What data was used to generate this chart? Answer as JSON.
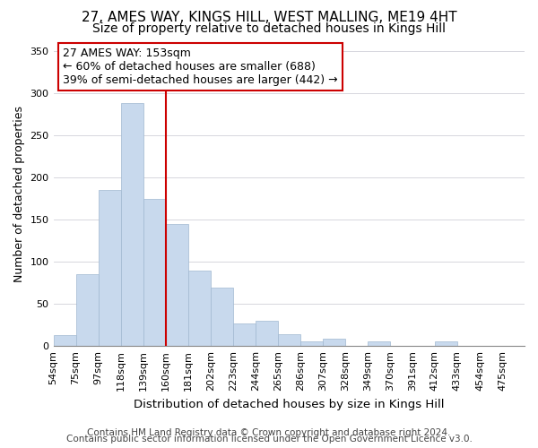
{
  "title": "27, AMES WAY, KINGS HILL, WEST MALLING, ME19 4HT",
  "subtitle": "Size of property relative to detached houses in Kings Hill",
  "xlabel": "Distribution of detached houses by size in Kings Hill",
  "ylabel": "Number of detached properties",
  "footer_line1": "Contains HM Land Registry data © Crown copyright and database right 2024.",
  "footer_line2": "Contains public sector information licensed under the Open Government Licence v3.0.",
  "bin_labels": [
    "54sqm",
    "75sqm",
    "97sqm",
    "118sqm",
    "139sqm",
    "160sqm",
    "181sqm",
    "202sqm",
    "223sqm",
    "244sqm",
    "265sqm",
    "286sqm",
    "307sqm",
    "328sqm",
    "349sqm",
    "370sqm",
    "391sqm",
    "412sqm",
    "433sqm",
    "454sqm",
    "475sqm"
  ],
  "bar_values": [
    13,
    85,
    185,
    288,
    175,
    145,
    90,
    69,
    27,
    30,
    14,
    5,
    9,
    0,
    5,
    0,
    0,
    5,
    0,
    0,
    0
  ],
  "bar_color": "#c8d9ed",
  "bar_edge_color": "#a0b8d0",
  "vline_position": 5,
  "vline_color": "#cc0000",
  "annotation_text": "27 AMES WAY: 153sqm\n← 60% of detached houses are smaller (688)\n39% of semi-detached houses are larger (442) →",
  "ylim": [
    0,
    360
  ],
  "yticks": [
    0,
    50,
    100,
    150,
    200,
    250,
    300,
    350
  ],
  "background_color": "#ffffff",
  "title_fontsize": 11,
  "subtitle_fontsize": 10,
  "xlabel_fontsize": 9.5,
  "ylabel_fontsize": 9,
  "annotation_fontsize": 9,
  "footer_fontsize": 7.5,
  "tick_fontsize": 8
}
